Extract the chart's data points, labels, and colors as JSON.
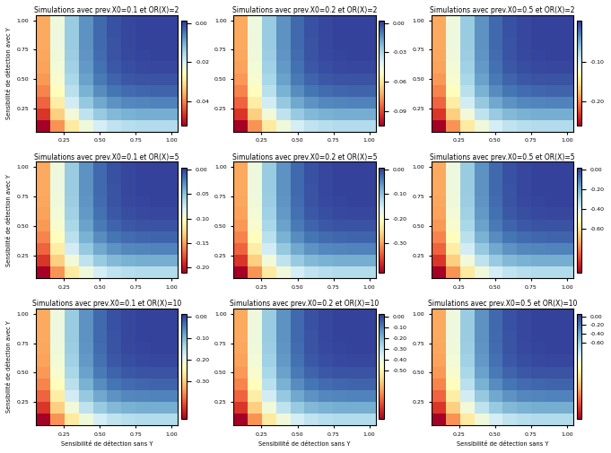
{
  "titles": [
    [
      "Simulations avec prev.X0=0.1 et OR(X)=2",
      "Simulations avec prev.X0=0.2 et OR(X)=2",
      "Simulations avec prev.X0=0.5 et OR(X)=2"
    ],
    [
      "Simulations avec prev.X0=0.1 et OR(X)=5",
      "Simulations avec prev.X0=0.2 et OR(X)=5",
      "Simulations avec prev.X0=0.5 et OR(X)=5"
    ],
    [
      "Simulations avec prev.X0=0.1 et OR(X)=10",
      "Simulations avec prev.X0=0.2 et OR(X)=10",
      "Simulations avec prev.X0=0.5 et OR(X)=10"
    ]
  ],
  "prev_vals": [
    0.1,
    0.2,
    0.5
  ],
  "OR_vals": [
    2,
    5,
    10
  ],
  "colorbar_ticks": [
    [
      [
        0.0,
        -0.02,
        -0.04
      ],
      [
        0.0,
        -0.03,
        -0.06,
        -0.09
      ],
      [
        -0.1,
        -0.2
      ]
    ],
    [
      [
        0.0,
        -0.05,
        -0.1,
        -0.15,
        -0.2
      ],
      [
        0.0,
        -0.1,
        -0.2,
        -0.3
      ],
      [
        0.0,
        -0.2,
        -0.4,
        -0.6
      ]
    ],
    [
      [
        0.0,
        -0.1,
        -0.2,
        -0.3
      ],
      [
        0.0,
        -0.1,
        -0.2,
        -0.3,
        -0.4,
        -0.5
      ],
      [
        0.0,
        -0.2,
        -0.4,
        -0.6
      ]
    ]
  ],
  "x_ticks": [
    0.25,
    0.5,
    0.75,
    1.0
  ],
  "y_ticks": [
    0.25,
    0.5,
    0.75,
    1.0
  ],
  "xlabel": "Sensibilité de détection sans Y",
  "ylabel": "Sensibilité de détection avec Y",
  "n_cells": 10,
  "cmap": "RdYlBu",
  "figsize": [
    6.81,
    5.05
  ],
  "dpi": 100,
  "background": "#f0f0f0"
}
